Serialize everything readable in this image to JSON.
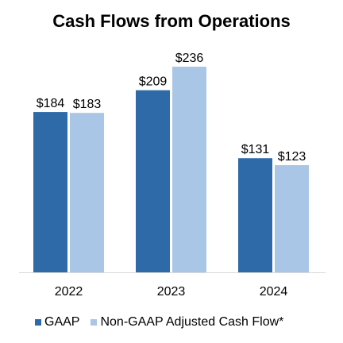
{
  "chart_data": {
    "type": "bar",
    "title": "Cash Flows from Operations",
    "categories": [
      "2022",
      "2023",
      "2024"
    ],
    "series": [
      {
        "name": "GAAP",
        "values": [
          184,
          209,
          131
        ],
        "labels": [
          "$184",
          "$209",
          "$131"
        ],
        "color": "#2e6aa8"
      },
      {
        "name": "Non-GAAP Adjusted Cash Flow*",
        "values": [
          183,
          236,
          123
        ],
        "labels": [
          "$183",
          "$236",
          "$123"
        ],
        "color": "#a9c6e6"
      }
    ],
    "ylim": [
      0,
      236
    ],
    "grid": false,
    "legend_position": "bottom-left"
  }
}
